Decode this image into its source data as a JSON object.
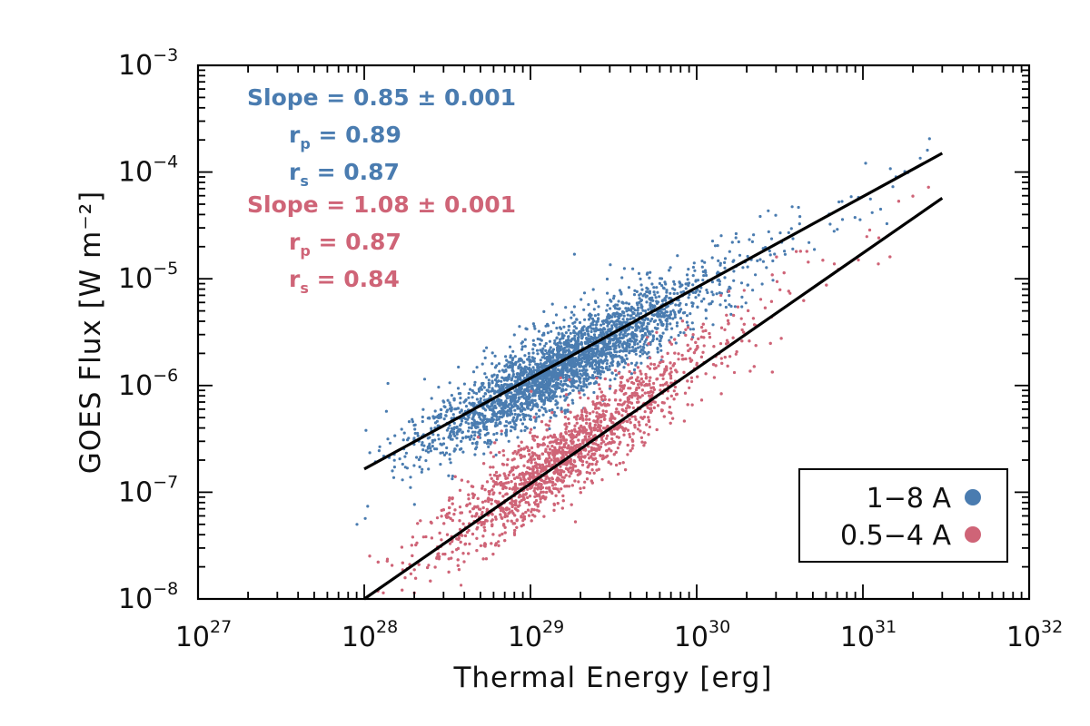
{
  "chart_data": {
    "type": "scatter",
    "title": "",
    "xlabel": "Thermal Energy [erg]",
    "ylabel": "GOES Flux [W m⁻²]",
    "xscale": "log",
    "yscale": "log",
    "xlim": [
      1e+27,
      1e+32
    ],
    "ylim": [
      1e-08,
      0.001
    ],
    "x_ticks": [
      {
        "base": "10",
        "exp": "27"
      },
      {
        "base": "10",
        "exp": "28"
      },
      {
        "base": "10",
        "exp": "29"
      },
      {
        "base": "10",
        "exp": "30"
      },
      {
        "base": "10",
        "exp": "31"
      },
      {
        "base": "10",
        "exp": "32"
      }
    ],
    "y_ticks": [
      {
        "base": "10",
        "exp": "−8"
      },
      {
        "base": "10",
        "exp": "−7"
      },
      {
        "base": "10",
        "exp": "−6"
      },
      {
        "base": "10",
        "exp": "−5"
      },
      {
        "base": "10",
        "exp": "−4"
      },
      {
        "base": "10",
        "exp": "−3"
      }
    ],
    "colors": {
      "band_1_8": "#4a7cb0",
      "band_05_4": "#cf6477"
    },
    "series": [
      {
        "name": "1−8 A",
        "color": "#4a7cb0",
        "n_points": 3000,
        "fit": {
          "slope": 0.85,
          "x_range": [
            1e+28,
            3e+31
          ],
          "y_range": [
            1.65e-07,
            0.00015
          ]
        },
        "stats": {
          "slope_label": "Slope",
          "slope_value": "0.85 ± 0.001",
          "rp_value": "0.89",
          "rs_value": "0.87"
        }
      },
      {
        "name": "0.5−4 A",
        "color": "#cf6477",
        "n_points": 3000,
        "fit": {
          "slope": 1.08,
          "x_range": [
            1e+28,
            3e+31
          ],
          "y_range": [
            1e-08,
            5.7e-05
          ]
        },
        "stats": {
          "slope_label": "Slope",
          "slope_value": "1.08 ± 0.001",
          "rp_value": "0.87",
          "rs_value": "0.84"
        }
      }
    ],
    "annotations": {
      "eq": "=",
      "r": "r",
      "p_sub": "p",
      "s_sub": "s"
    },
    "legend": {
      "position": "bottom-right",
      "entries": [
        "1−8 A",
        "0.5−4 A"
      ]
    }
  }
}
